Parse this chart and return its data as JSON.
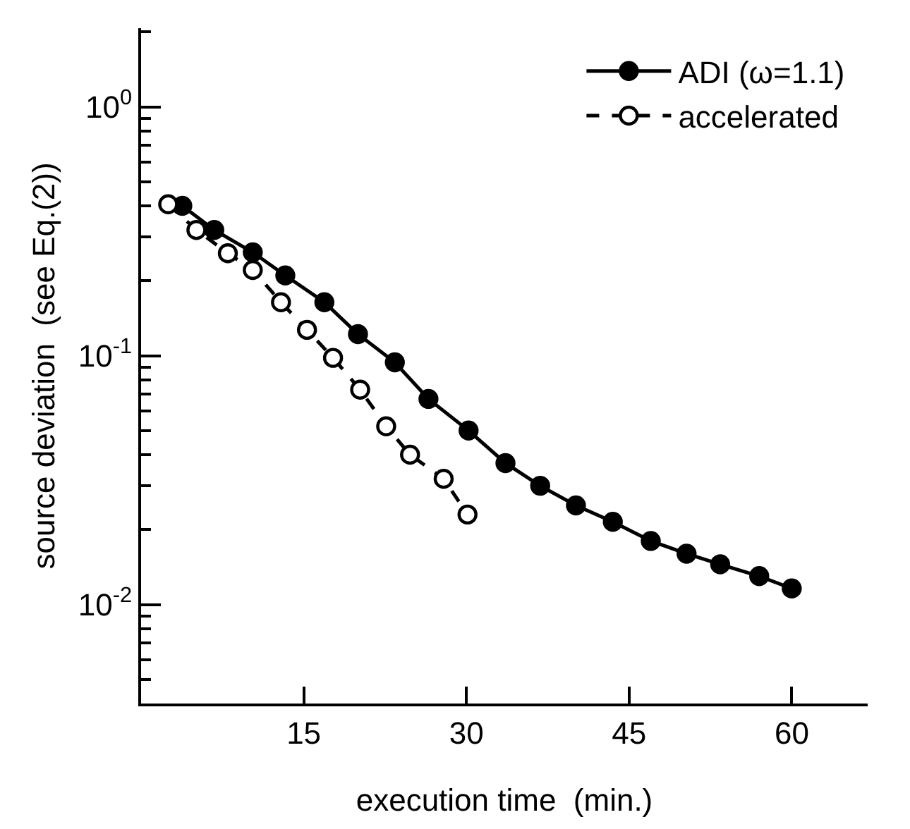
{
  "chart_data": {
    "type": "line",
    "xlabel": "execution time  (min.)",
    "ylabel": "source deviation  (see Eq.(2))",
    "xlim": [
      0,
      67
    ],
    "xticks": [
      15,
      30,
      45,
      60
    ],
    "ylim": [
      0.004,
      2.07
    ],
    "yticks": [
      {
        "value": 1,
        "label": "10$^{0}$"
      },
      {
        "value": 0.1,
        "label": "10$^{-1}$"
      },
      {
        "value": 0.01,
        "label": "10$^{-2}$"
      }
    ],
    "log": "y",
    "legend": "top right",
    "series": [
      {
        "name": "ADI (ω=1.1)",
        "color": "#000000",
        "marker": "circle",
        "line_style": "solid",
        "x": [
          3.8,
          6.75,
          10.3,
          13.3,
          16.9,
          20.0,
          23.4,
          26.5,
          30.2,
          33.6,
          36.8,
          40.1,
          43.5,
          47.0,
          50.3,
          53.4,
          57.0,
          60.0
        ],
        "values": [
          0.4,
          0.32,
          0.26,
          0.21,
          0.164,
          0.122,
          0.094,
          0.067,
          0.05,
          0.037,
          0.03,
          0.025,
          0.0215,
          0.018,
          0.016,
          0.0145,
          0.013,
          0.0116
        ]
      },
      {
        "name": "accelerated",
        "color": "#000000",
        "marker": "circle-open",
        "line_style": "dashed",
        "x": [
          2.5,
          5.1,
          8.0,
          10.3,
          12.9,
          15.3,
          17.7,
          20.2,
          22.6,
          24.8,
          27.9,
          30.1
        ],
        "values": [
          0.406,
          0.32,
          0.258,
          0.221,
          0.164,
          0.127,
          0.098,
          0.073,
          0.052,
          0.04,
          0.032,
          0.023
        ]
      }
    ]
  }
}
